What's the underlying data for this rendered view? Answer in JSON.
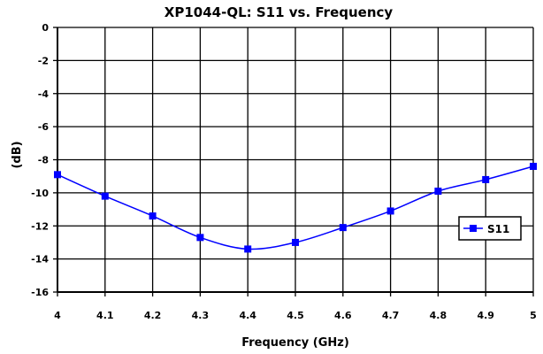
{
  "chart_data": {
    "type": "line",
    "title": "XP1044-QL: S11 vs. Frequency",
    "xlabel": "Frequency (GHz)",
    "ylabel": "(dB)",
    "xlim": [
      4,
      5
    ],
    "ylim": [
      -16,
      0
    ],
    "x_ticks": [
      "4",
      "4.1",
      "4.2",
      "4.3",
      "4.4",
      "4.5",
      "4.6",
      "4.7",
      "4.8",
      "4.9",
      "5"
    ],
    "y_ticks": [
      "0",
      "-2",
      "-4",
      "-6",
      "-8",
      "-10",
      "-12",
      "-14",
      "-16"
    ],
    "grid": true,
    "legend_position": "right",
    "series": [
      {
        "name": "S11",
        "color": "#0000ff",
        "marker": "square",
        "x": [
          4.0,
          4.1,
          4.2,
          4.3,
          4.4,
          4.5,
          4.6,
          4.7,
          4.8,
          4.9,
          5.0
        ],
        "values": [
          -8.9,
          -10.2,
          -11.4,
          -12.7,
          -13.4,
          -13.0,
          -12.1,
          -11.1,
          -9.9,
          -9.2,
          -8.4
        ]
      }
    ]
  }
}
